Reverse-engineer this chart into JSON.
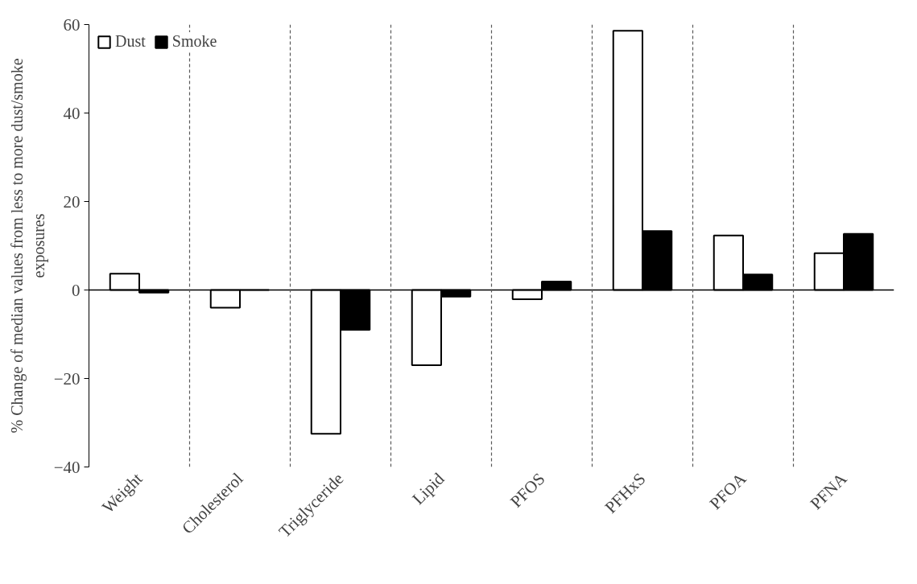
{
  "chart_data": {
    "type": "bar",
    "ylabel": "% Change of median values from less to more dust/smoke exposures",
    "categories": [
      "Weight",
      "Cholesterol",
      "Triglyceride",
      "Lipid",
      "PFOS",
      "PFHxS",
      "PFOA",
      "PFNA"
    ],
    "series": [
      {
        "name": "Dust",
        "color": "#ffffff",
        "values": [
          3.7,
          -4,
          -32.5,
          -17,
          -2.1,
          58.6,
          12.3,
          8.3
        ]
      },
      {
        "name": "Smoke",
        "color": "#000000",
        "values": [
          -0.6,
          0,
          -9,
          -1.5,
          1.9,
          13.3,
          3.5,
          12.7
        ]
      }
    ],
    "ylim": [
      -40,
      60
    ],
    "yticks": [
      -40,
      -20,
      0,
      20,
      40,
      60
    ],
    "grid": false,
    "legend": "top left"
  }
}
